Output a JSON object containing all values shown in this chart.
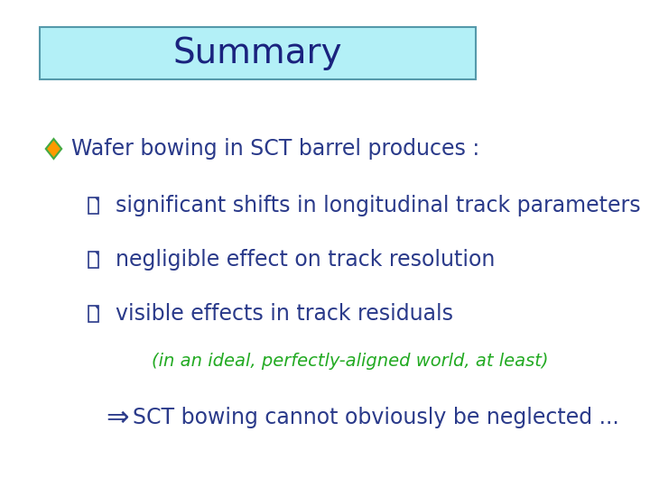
{
  "title": "Summary",
  "title_bg_color": "#b3f0f7",
  "title_border_color": "#5599aa",
  "title_text_color": "#1a237e",
  "title_fontsize": 28,
  "bullet_color": "#2a3a8a",
  "diamond_fill": "#ff9900",
  "diamond_edge": "#44aa44",
  "sub_bullet_color": "#2a3a8a",
  "green_text_color": "#22aa22",
  "main_bullet_text": "Wafer bowing in SCT barrel produces :",
  "sub_bullets": [
    "significant shifts in longitudinal track parameters",
    "negligible effect on track resolution",
    "visible effects in track residuals"
  ],
  "italic_note": "(in an ideal, perfectly-aligned world, at least)",
  "conclusion": "SCT bowing cannot obviously be neglected ...",
  "bg_color": "#ffffff",
  "text_fontsize": 17,
  "sub_fontsize": 17,
  "note_fontsize": 14,
  "conclusion_fontsize": 17
}
